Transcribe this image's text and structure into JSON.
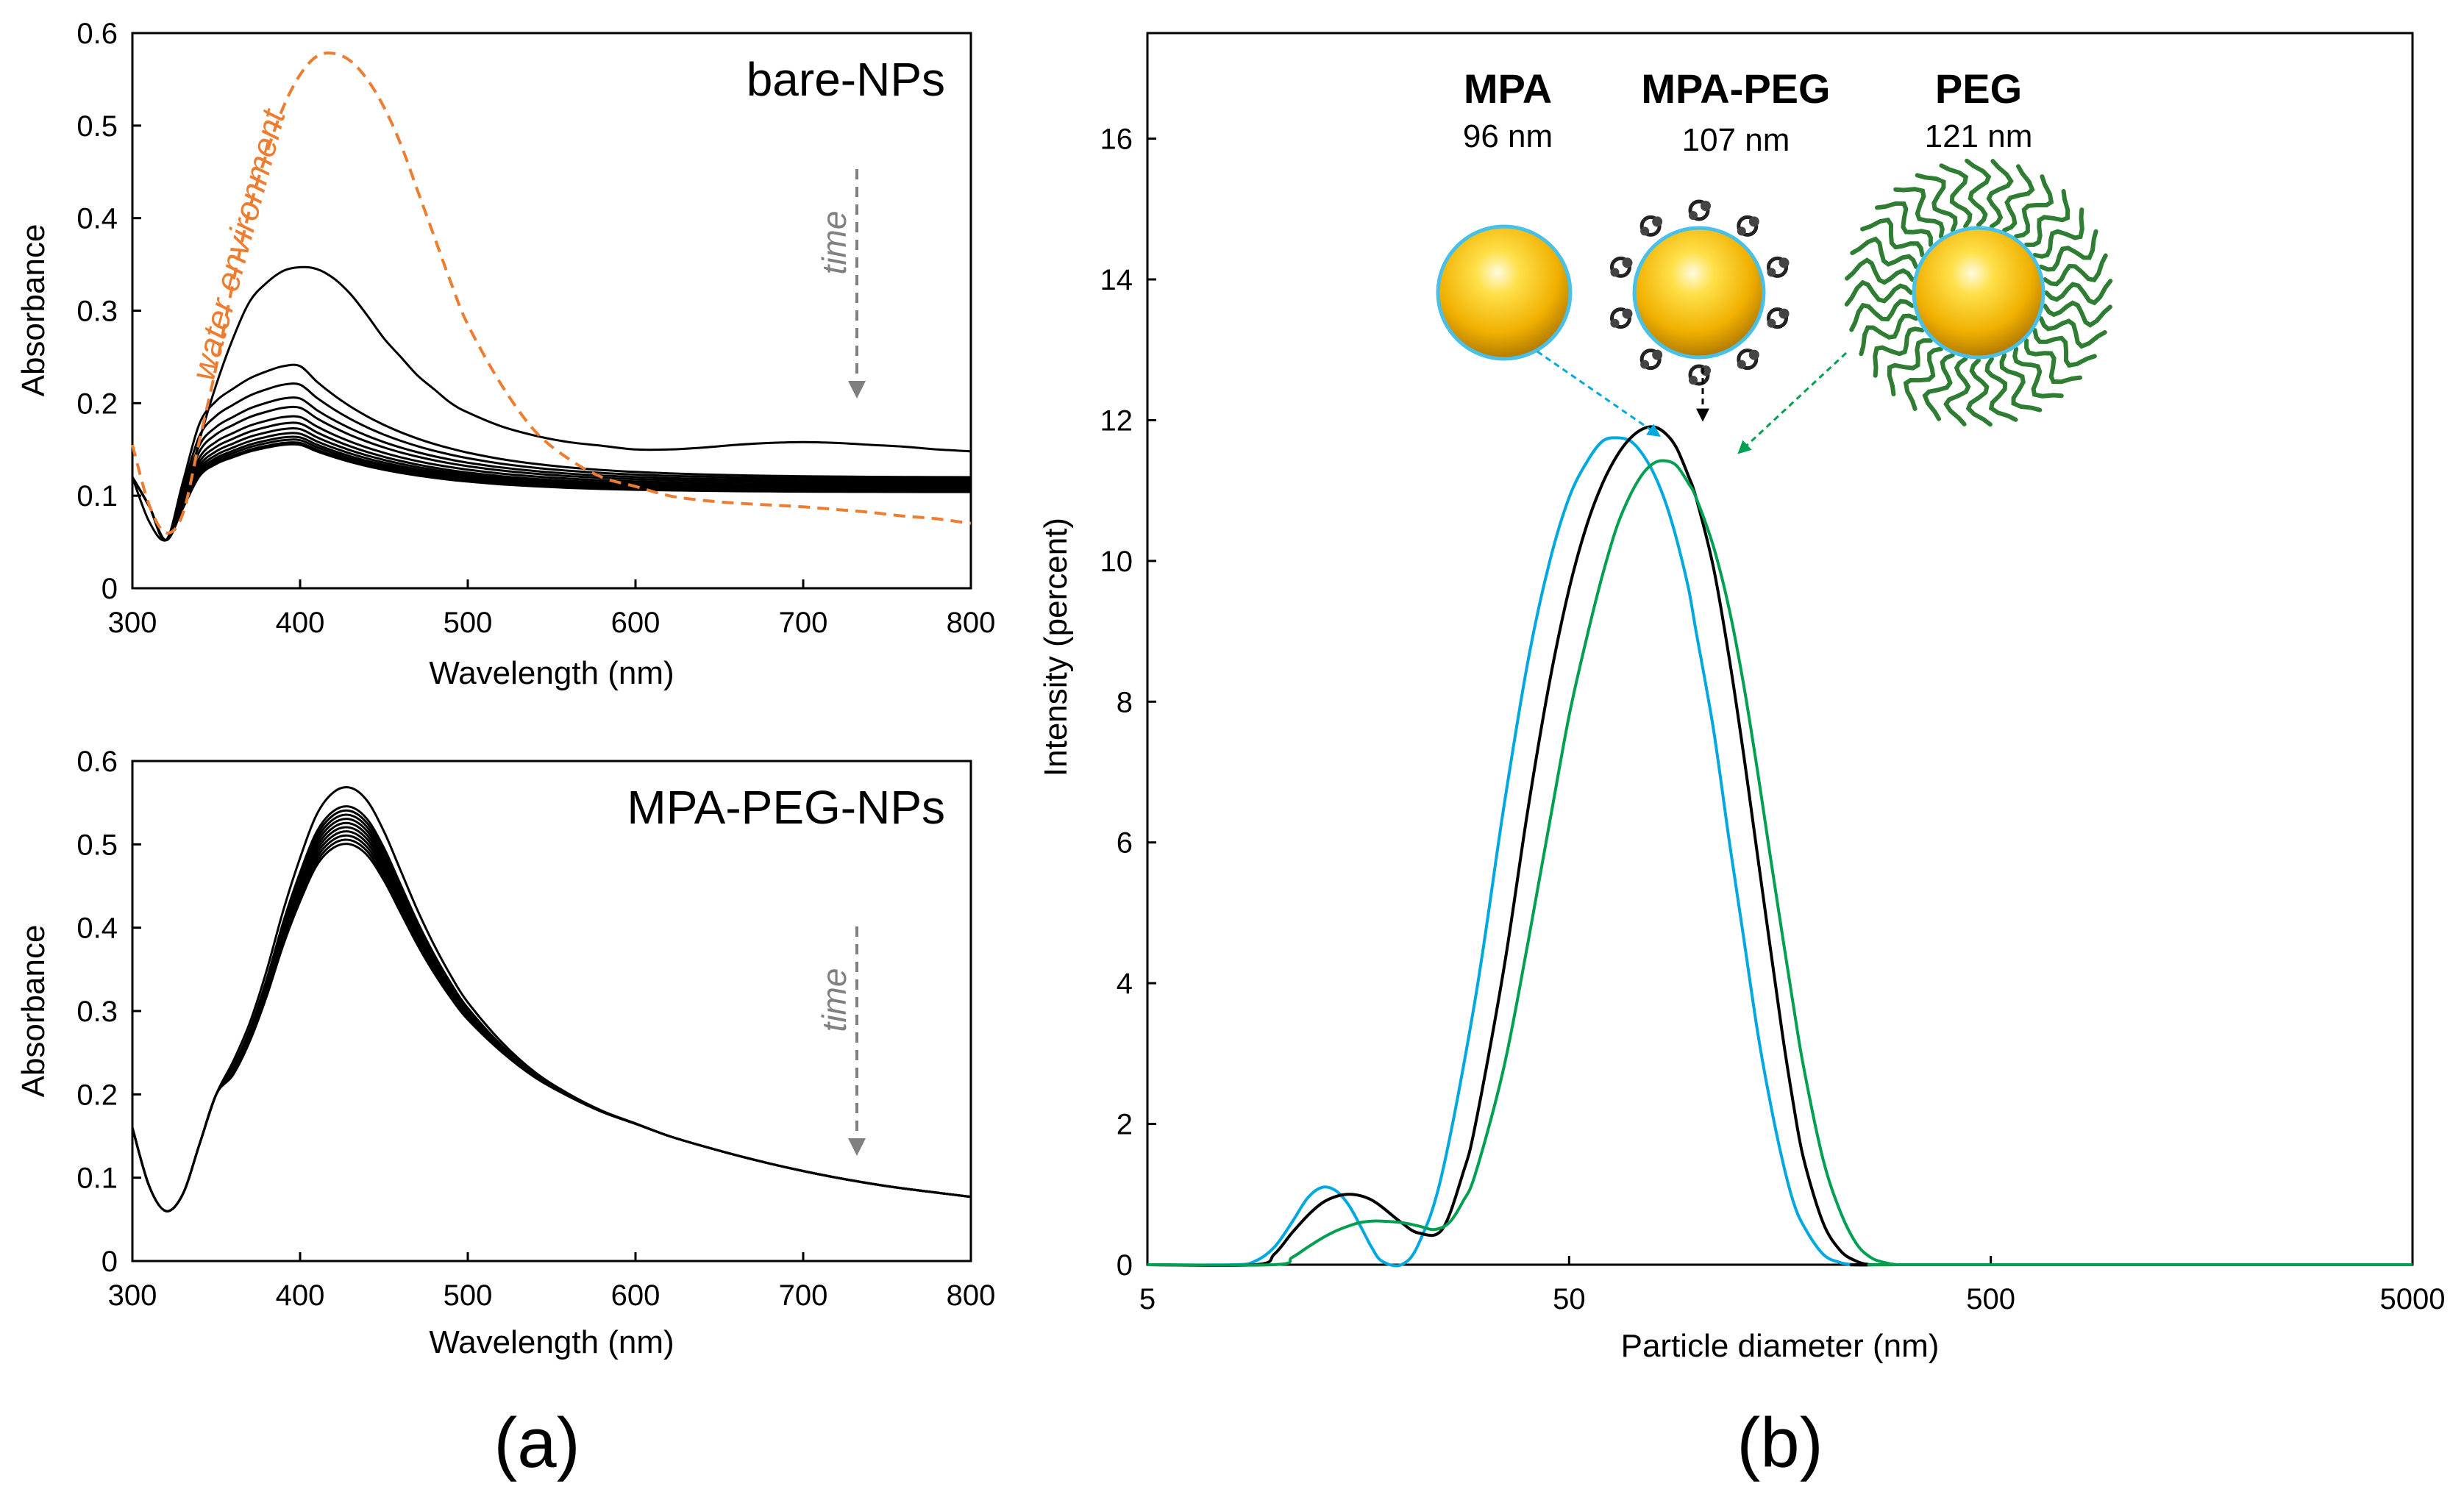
{
  "panel_labels": {
    "a": "(a)",
    "b": "(b)"
  },
  "time_label": "time",
  "water_label": "water environment",
  "particles": [
    {
      "name": "MPA",
      "size": "96 nm",
      "color": "#00a8e0"
    },
    {
      "name": "MPA-PEG",
      "size": "107 nm",
      "color": "#000000"
    },
    {
      "name": "PEG",
      "size": "121 nm",
      "color": "#00a050"
    }
  ],
  "chart_data": [
    {
      "type": "line",
      "title": "bare-NPs",
      "xlabel": "Wavelength (nm)",
      "ylabel": "Absorbance",
      "xlim": [
        300,
        800
      ],
      "ylim": [
        0,
        0.6
      ],
      "xticks": [
        300,
        400,
        500,
        600,
        700,
        800
      ],
      "yticks": [
        0,
        0.1,
        0.2,
        0.3,
        0.4,
        0.5,
        0.6
      ],
      "annotation": "time series of spectra decreasing with time",
      "reference_series": {
        "name": "water environment",
        "style": "dashed",
        "color": "#ed7d31",
        "x": [
          300,
          310,
          320,
          330,
          340,
          350,
          360,
          370,
          380,
          390,
          400,
          410,
          420,
          430,
          440,
          450,
          460,
          470,
          480,
          490,
          500,
          520,
          540,
          560,
          580,
          600,
          620,
          640,
          660,
          680,
          700,
          720,
          740,
          760,
          780,
          800
        ],
        "y": [
          0.155,
          0.09,
          0.06,
          0.08,
          0.16,
          0.24,
          0.33,
          0.41,
          0.47,
          0.52,
          0.555,
          0.575,
          0.578,
          0.57,
          0.55,
          0.52,
          0.48,
          0.43,
          0.38,
          0.33,
          0.285,
          0.22,
          0.17,
          0.14,
          0.12,
          0.11,
          0.1,
          0.095,
          0.092,
          0.09,
          0.088,
          0.085,
          0.082,
          0.078,
          0.075,
          0.07
        ]
      },
      "series_x": [
        300,
        310,
        320,
        330,
        340,
        350,
        360,
        370,
        380,
        390,
        400,
        410,
        420,
        430,
        440,
        450,
        460,
        470,
        480,
        490,
        500,
        520,
        540,
        560,
        580,
        600,
        620,
        640,
        660,
        680,
        700,
        720,
        740,
        760,
        780,
        800
      ],
      "series_shape": [
        1.0,
        0.54,
        0.0,
        0.33,
        0.67,
        0.8,
        0.87,
        0.93,
        0.97,
        1.0,
        1.0,
        0.99,
        0.97,
        0.94,
        0.9,
        0.86,
        0.82,
        0.78,
        0.74,
        0.7,
        0.66,
        0.6,
        0.56,
        0.52,
        0.49,
        0.47,
        0.45,
        0.44,
        0.43,
        0.42,
        0.42,
        0.41,
        0.4,
        0.4,
        0.39,
        0.38
      ],
      "series": [
        {
          "name": "t1",
          "values": [
            0.12,
            0.072,
            0.052,
            0.09,
            0.16,
            0.22,
            0.27,
            0.31,
            0.33,
            0.343,
            0.347,
            0.345,
            0.335,
            0.318,
            0.295,
            0.27,
            0.25,
            0.23,
            0.215,
            0.2,
            0.19,
            0.175,
            0.165,
            0.158,
            0.154,
            0.15,
            0.15,
            0.152,
            0.155,
            0.157,
            0.158,
            0.157,
            0.155,
            0.153,
            0.15,
            0.148
          ]
        },
        {
          "name": "t2",
          "peak": 0.24,
          "tail": 0.12
        },
        {
          "name": "t3",
          "peak": 0.22,
          "tail": 0.118
        },
        {
          "name": "t4",
          "peak": 0.205,
          "tail": 0.116
        },
        {
          "name": "t5",
          "peak": 0.195,
          "tail": 0.114
        },
        {
          "name": "t6",
          "peak": 0.185,
          "tail": 0.112
        },
        {
          "name": "t7",
          "peak": 0.178,
          "tail": 0.11
        },
        {
          "name": "t8",
          "peak": 0.172,
          "tail": 0.109
        },
        {
          "name": "t9",
          "peak": 0.167,
          "tail": 0.108
        },
        {
          "name": "t10",
          "peak": 0.163,
          "tail": 0.107
        },
        {
          "name": "t11",
          "peak": 0.16,
          "tail": 0.106
        },
        {
          "name": "t12",
          "peak": 0.157,
          "tail": 0.105
        },
        {
          "name": "t13",
          "peak": 0.155,
          "tail": 0.104
        }
      ]
    },
    {
      "type": "line",
      "title": "MPA-PEG-NPs",
      "xlabel": "Wavelength (nm)",
      "ylabel": "Absorbance",
      "xlim": [
        300,
        800
      ],
      "ylim": [
        0,
        0.6
      ],
      "xticks": [
        300,
        400,
        500,
        600,
        700,
        800
      ],
      "yticks": [
        0,
        0.1,
        0.2,
        0.3,
        0.4,
        0.5,
        0.6
      ],
      "x": [
        300,
        310,
        320,
        330,
        340,
        350,
        360,
        370,
        380,
        390,
        400,
        410,
        420,
        430,
        440,
        450,
        460,
        470,
        480,
        490,
        500,
        520,
        540,
        560,
        580,
        600,
        620,
        640,
        660,
        680,
        700,
        720,
        740,
        760,
        780,
        800
      ],
      "base_values": [
        0.16,
        0.09,
        0.06,
        0.08,
        0.14,
        0.2,
        0.235,
        0.28,
        0.34,
        0.41,
        0.47,
        0.52,
        0.545,
        0.55,
        0.535,
        0.5,
        0.455,
        0.41,
        0.37,
        0.335,
        0.305,
        0.26,
        0.225,
        0.2,
        0.18,
        0.165,
        0.15,
        0.138,
        0.127,
        0.117,
        0.108,
        0.1,
        0.093,
        0.087,
        0.082,
        0.077
      ],
      "series": [
        {
          "name": "t1",
          "peak": 0.568
        },
        {
          "name": "t2",
          "peak": 0.545
        },
        {
          "name": "t3",
          "peak": 0.54
        },
        {
          "name": "t4",
          "peak": 0.535
        },
        {
          "name": "t5",
          "peak": 0.53
        },
        {
          "name": "t6",
          "peak": 0.525
        },
        {
          "name": "t7",
          "peak": 0.52
        },
        {
          "name": "t8",
          "peak": 0.515
        },
        {
          "name": "t9",
          "peak": 0.51
        },
        {
          "name": "t10",
          "peak": 0.505
        },
        {
          "name": "t11",
          "peak": 0.5
        }
      ]
    },
    {
      "type": "line",
      "title": "",
      "xlabel": "Particle diameter (nm)",
      "ylabel": "Intensity (percent)",
      "xscale": "log",
      "xlim": [
        5,
        5000
      ],
      "ylim": [
        0,
        17.5
      ],
      "xticks": [
        5,
        50,
        500,
        5000
      ],
      "yticks": [
        0,
        2,
        4,
        6,
        8,
        10,
        12,
        14,
        16
      ],
      "series": [
        {
          "name": "MPA",
          "color": "#00a8e0",
          "x": [
            5,
            8,
            9,
            10,
            11,
            12,
            13,
            14,
            15,
            16,
            17,
            18,
            20,
            22,
            25,
            30,
            35,
            40,
            45,
            50,
            55,
            60,
            65,
            70,
            75,
            80,
            85,
            90,
            96,
            100,
            110,
            120,
            130,
            140,
            150,
            160,
            170,
            180,
            200,
            220,
            240,
            260,
            280,
            300,
            350,
            400,
            5000
          ],
          "y": [
            0,
            0,
            0.05,
            0.25,
            0.6,
            0.95,
            1.1,
            1.05,
            0.85,
            0.55,
            0.25,
            0.05,
            0.0,
            0.3,
            1.3,
            3.8,
            6.5,
            8.6,
            10.0,
            10.9,
            11.4,
            11.7,
            11.75,
            11.7,
            11.5,
            11.2,
            10.8,
            10.3,
            9.6,
            9.0,
            7.6,
            6.0,
            4.6,
            3.3,
            2.3,
            1.5,
            0.9,
            0.55,
            0.15,
            0.03,
            0,
            0,
            0,
            0,
            0,
            0,
            0
          ]
        },
        {
          "name": "MPA-PEG",
          "color": "#000000",
          "x": [
            5,
            9,
            10,
            11,
            12,
            13,
            14,
            15,
            16,
            17,
            18,
            20,
            22,
            25,
            28,
            30,
            35,
            40,
            45,
            50,
            55,
            60,
            65,
            70,
            75,
            80,
            85,
            90,
            96,
            100,
            110,
            120,
            130,
            140,
            150,
            160,
            170,
            180,
            200,
            220,
            240,
            260,
            300,
            5000
          ],
          "y": [
            0,
            0,
            0.15,
            0.45,
            0.7,
            0.88,
            0.97,
            1.0,
            0.98,
            0.92,
            0.82,
            0.6,
            0.45,
            0.5,
            1.3,
            2.0,
            4.2,
            6.5,
            8.3,
            9.6,
            10.5,
            11.1,
            11.5,
            11.75,
            11.88,
            11.9,
            11.8,
            11.6,
            11.2,
            10.9,
            9.9,
            8.6,
            7.2,
            5.8,
            4.5,
            3.3,
            2.3,
            1.5,
            0.6,
            0.2,
            0.05,
            0,
            0,
            0
          ]
        },
        {
          "name": "PEG",
          "color": "#00a050",
          "x": [
            5,
            10,
            11,
            12,
            13,
            14,
            15,
            16,
            17,
            18,
            20,
            22,
            24,
            26,
            28,
            30,
            35,
            40,
            45,
            50,
            55,
            60,
            65,
            70,
            75,
            80,
            85,
            90,
            96,
            100,
            110,
            120,
            130,
            140,
            150,
            160,
            170,
            180,
            200,
            220,
            240,
            260,
            280,
            300,
            320,
            5000
          ],
          "y": [
            0,
            0,
            0.1,
            0.25,
            0.38,
            0.48,
            0.55,
            0.6,
            0.62,
            0.62,
            0.6,
            0.55,
            0.5,
            0.6,
            0.9,
            1.3,
            2.8,
            4.6,
            6.3,
            7.8,
            8.9,
            9.8,
            10.5,
            10.95,
            11.25,
            11.4,
            11.42,
            11.35,
            11.1,
            10.9,
            10.2,
            9.3,
            8.2,
            7.0,
            5.8,
            4.7,
            3.7,
            2.8,
            1.5,
            0.75,
            0.3,
            0.1,
            0.03,
            0,
            0,
            0
          ]
        }
      ]
    }
  ]
}
